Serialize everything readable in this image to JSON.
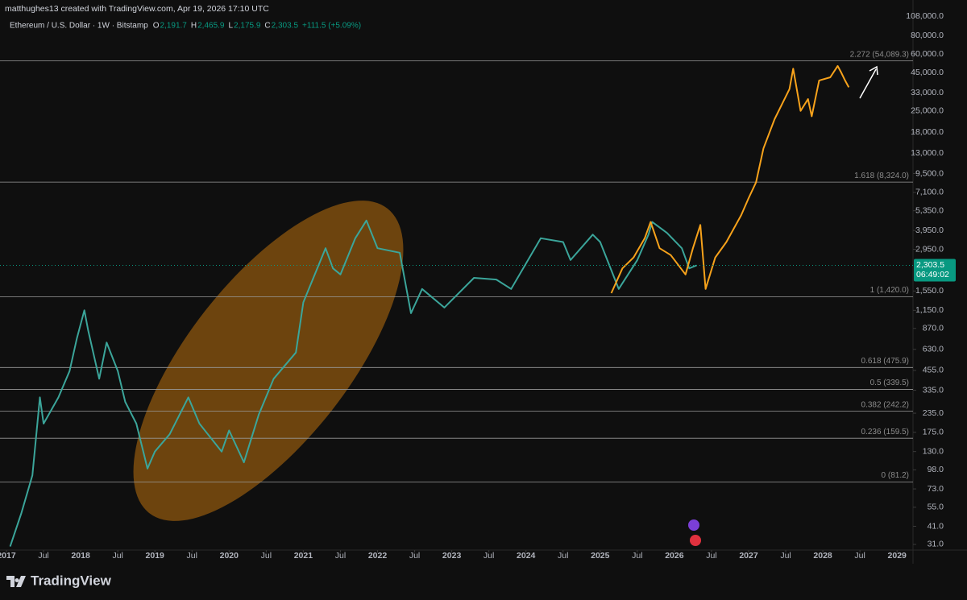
{
  "header": {
    "credit": "matthughes13 created with TradingView.com, Apr 19, 2026 17:10 UTC",
    "symbol": "Ethereum / U.S. Dollar · 1W · Bitstamp",
    "ohlc": [
      {
        "key": "O",
        "value": "2,191.7"
      },
      {
        "key": "H",
        "value": "2,465.9"
      },
      {
        "key": "L",
        "value": "2,175.9"
      },
      {
        "key": "C",
        "value": "2,303.5"
      }
    ],
    "change": "+111.5 (+5.09%)"
  },
  "footer": {
    "brand": "TradingView"
  },
  "chart_data": {
    "type": "line",
    "log_scale": true,
    "grid": false,
    "xlim": [
      2016.913,
      2029.215
    ],
    "xticks": [
      {
        "value": 2017,
        "label": "2017"
      },
      {
        "value": 2017.5,
        "label": "Jul"
      },
      {
        "value": 2018,
        "label": "2018"
      },
      {
        "value": 2018.5,
        "label": "Jul"
      },
      {
        "value": 2019,
        "label": "2019"
      },
      {
        "value": 2019.5,
        "label": "Jul"
      },
      {
        "value": 2020,
        "label": "2020"
      },
      {
        "value": 2020.5,
        "label": "Jul"
      },
      {
        "value": 2021,
        "label": "2021"
      },
      {
        "value": 2021.5,
        "label": "Jul"
      },
      {
        "value": 2022,
        "label": "2022"
      },
      {
        "value": 2022.5,
        "label": "Jul"
      },
      {
        "value": 2023,
        "label": "2023"
      },
      {
        "value": 2023.5,
        "label": "Jul"
      },
      {
        "value": 2024,
        "label": "2024"
      },
      {
        "value": 2024.5,
        "label": "Jul"
      },
      {
        "value": 2025,
        "label": "2025"
      },
      {
        "value": 2025.5,
        "label": "Jul"
      },
      {
        "value": 2026,
        "label": "2026"
      },
      {
        "value": 2026.5,
        "label": "Jul"
      },
      {
        "value": 2027,
        "label": "2027"
      },
      {
        "value": 2027.5,
        "label": "Jul"
      },
      {
        "value": 2028,
        "label": "2028"
      },
      {
        "value": 2028.5,
        "label": "Jul"
      },
      {
        "value": 2029,
        "label": "2029"
      }
    ],
    "ylim": [
      28.4,
      138500
    ],
    "yticks": [
      {
        "value": 108000,
        "label": "108,000.0"
      },
      {
        "value": 80000,
        "label": "80,000.0"
      },
      {
        "value": 60000,
        "label": "60,000.0"
      },
      {
        "value": 45000,
        "label": "45,000.0"
      },
      {
        "value": 33000,
        "label": "33,000.0"
      },
      {
        "value": 25000,
        "label": "25,000.0"
      },
      {
        "value": 18000,
        "label": "18,000.0"
      },
      {
        "value": 13000,
        "label": "13,000.0"
      },
      {
        "value": 9500,
        "label": "9,500.0"
      },
      {
        "value": 7100,
        "label": "7,100.0"
      },
      {
        "value": 5350,
        "label": "5,350.0"
      },
      {
        "value": 3950,
        "label": "3,950.0"
      },
      {
        "value": 2950,
        "label": "2,950.0"
      },
      {
        "value": 1550,
        "label": "1,550.0"
      },
      {
        "value": 1150,
        "label": "1,150.0"
      },
      {
        "value": 870,
        "label": "870.0"
      },
      {
        "value": 630,
        "label": "630.0"
      },
      {
        "value": 455,
        "label": "455.0"
      },
      {
        "value": 335,
        "label": "335.0"
      },
      {
        "value": 235,
        "label": "235.0"
      },
      {
        "value": 175,
        "label": "175.0"
      },
      {
        "value": 130,
        "label": "130.0"
      },
      {
        "value": 98,
        "label": "98.0"
      },
      {
        "value": 73,
        "label": "73.0"
      },
      {
        "value": 55,
        "label": "55.0"
      },
      {
        "value": 41,
        "label": "41.0"
      },
      {
        "value": 31,
        "label": "31.0"
      }
    ],
    "last_price": {
      "value": 2303.5,
      "label": "2,303.5",
      "countdown": "06:49:02",
      "color": "#089981"
    },
    "fib_levels": [
      {
        "value": 54089.3,
        "label": "2.272 (54,089.3)"
      },
      {
        "value": 8324.0,
        "label": "1.618 (8,324.0)"
      },
      {
        "value": 1420.0,
        "label": "1 (1,420.0)"
      },
      {
        "value": 475.9,
        "label": "0.618 (475.9)"
      },
      {
        "value": 339.5,
        "label": "0.5 (339.5)"
      },
      {
        "value": 242.2,
        "label": "0.382 (242.2)"
      },
      {
        "value": 159.5,
        "label": "0.236 (159.5)"
      },
      {
        "value": 81.2,
        "label": "0 (81.2)"
      }
    ],
    "series": [
      {
        "color": "#3ba59a",
        "x": [
          2017.05,
          2017.2,
          2017.35,
          2017.45,
          2017.5,
          2017.7,
          2017.85,
          2017.95,
          2018.05,
          2018.1,
          2018.25,
          2018.35,
          2018.5,
          2018.6,
          2018.75,
          2018.9,
          2019.0,
          2019.2,
          2019.45,
          2019.6,
          2019.9,
          2020.0,
          2020.2,
          2020.4,
          2020.6,
          2020.9,
          2021.0,
          2021.3,
          2021.4,
          2021.5,
          2021.7,
          2021.85,
          2022.0,
          2022.3,
          2022.45,
          2022.6,
          2022.9,
          2023.3,
          2023.6,
          2023.8,
          2024.2,
          2024.5,
          2024.6,
          2024.9,
          2025.0,
          2025.25,
          2025.5,
          2025.65,
          2025.7,
          2025.9,
          2026.1,
          2026.2,
          2026.3
        ],
        "values": [
          30,
          50,
          90,
          300,
          200,
          300,
          450,
          750,
          1150,
          850,
          400,
          700,
          450,
          280,
          200,
          100,
          130,
          170,
          300,
          200,
          130,
          180,
          110,
          230,
          400,
          600,
          1300,
          3000,
          2200,
          2000,
          3500,
          4600,
          3000,
          2800,
          1100,
          1600,
          1200,
          1900,
          1850,
          1600,
          3500,
          3300,
          2500,
          3700,
          3300,
          1600,
          2500,
          3700,
          4500,
          3800,
          3000,
          2200,
          2303.5
        ]
      },
      {
        "color": "#f7a21b",
        "x": [
          2025.15,
          2025.3,
          2025.45,
          2025.6,
          2025.68,
          2025.8,
          2025.95,
          2026.15,
          2026.25,
          2026.35,
          2026.42,
          2026.55,
          2026.7,
          2026.9,
          2027.0,
          2027.1,
          2027.2,
          2027.35,
          2027.55,
          2027.6,
          2027.7,
          2027.8,
          2027.85,
          2027.95,
          2028.1,
          2028.2,
          2028.25,
          2028.3,
          2028.35
        ],
        "values": [
          1500,
          2200,
          2600,
          3500,
          4500,
          3000,
          2700,
          2000,
          3000,
          4300,
          1600,
          2600,
          3300,
          5000,
          6500,
          8300,
          14000,
          22000,
          35000,
          48000,
          25000,
          30000,
          23000,
          40000,
          42000,
          50000,
          45000,
          40000,
          36000
        ]
      }
    ]
  }
}
